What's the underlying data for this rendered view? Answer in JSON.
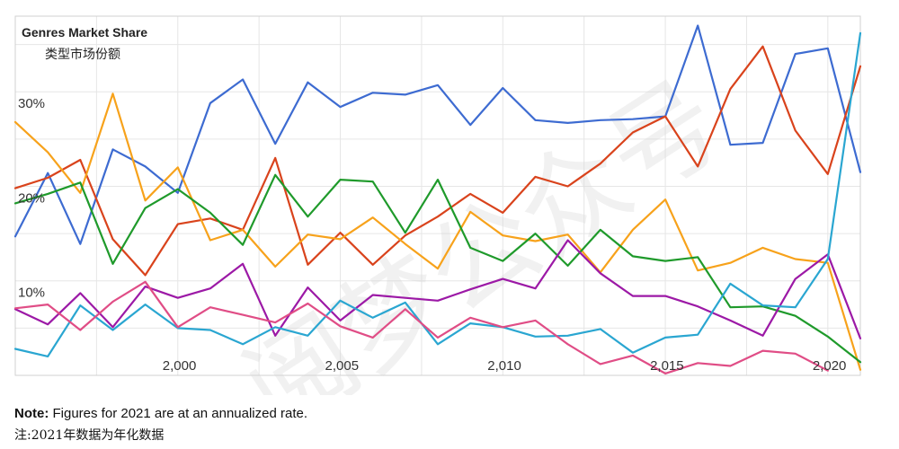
{
  "title": "Genres Market Share",
  "subtitle": "类型市场份额",
  "note_label": "Note:",
  "note_text": " Figures for 2021 are at an annualized rate.",
  "note_cn": "注:2021年数据为年化数据",
  "watermark": "阅梦公众号",
  "colors": {
    "blue": "#3d6bd1",
    "red": "#d9431c",
    "orange": "#f7a21b",
    "green": "#1f9a2b",
    "purple": "#9c19a6",
    "cyan": "#2aa6d1",
    "pink": "#e04d86",
    "grid": "#e6e6e6"
  },
  "chart_data": {
    "type": "line",
    "title": "Genres Market Share",
    "subtitle": "类型市场份额",
    "x": [
      1995,
      1996,
      1997,
      1998,
      1999,
      2000,
      2001,
      2002,
      2003,
      2004,
      2005,
      2006,
      2007,
      2008,
      2009,
      2010,
      2011,
      2012,
      2013,
      2014,
      2015,
      2016,
      2017,
      2018,
      2019,
      2020,
      2021
    ],
    "xlim": [
      1995,
      2021
    ],
    "ylim": [
      0,
      38
    ],
    "y_ticks": [
      {
        "value": 30,
        "label": "30%"
      },
      {
        "value": 20,
        "label": "20%"
      },
      {
        "value": 10,
        "label": "10%"
      }
    ],
    "x_ticks": [
      {
        "value": 2000,
        "label": "2,000"
      },
      {
        "value": 2005,
        "label": "2,005"
      },
      {
        "value": 2010,
        "label": "2,010"
      },
      {
        "value": 2015,
        "label": "2,015"
      },
      {
        "value": 2020,
        "label": "2,020"
      }
    ],
    "grid": true,
    "series": [
      {
        "color_key": "blue",
        "values": [
          14.7,
          21.4,
          13.9,
          23.9,
          22.1,
          19.3,
          28.8,
          31.3,
          24.5,
          31.0,
          28.4,
          29.9,
          29.7,
          30.7,
          26.5,
          30.4,
          27.0,
          26.7,
          27.0,
          27.1,
          27.4,
          37.0,
          24.4,
          24.6,
          34.0,
          34.6,
          21.5
        ]
      },
      {
        "color_key": "red",
        "values": [
          19.8,
          20.9,
          22.8,
          14.4,
          10.6,
          16.0,
          16.6,
          15.4,
          23.0,
          11.7,
          15.1,
          11.7,
          14.8,
          16.8,
          19.2,
          17.2,
          21.0,
          20.0,
          22.4,
          25.7,
          27.4,
          22.1,
          30.3,
          34.8,
          25.9,
          21.3,
          32.7
        ]
      },
      {
        "color_key": "orange",
        "values": [
          26.8,
          23.6,
          19.3,
          29.8,
          18.5,
          22.0,
          14.3,
          15.4,
          11.5,
          14.9,
          14.4,
          16.7,
          13.9,
          11.3,
          17.3,
          14.8,
          14.2,
          14.9,
          10.9,
          15.4,
          18.6,
          11.1,
          11.9,
          13.5,
          12.3,
          11.9,
          0.6
        ]
      },
      {
        "color_key": "green",
        "values": [
          18.2,
          19.2,
          20.4,
          11.8,
          17.7,
          19.7,
          17.2,
          13.8,
          21.2,
          16.8,
          20.7,
          20.5,
          15.1,
          20.7,
          13.5,
          12.1,
          15.0,
          11.6,
          15.4,
          12.6,
          12.1,
          12.5,
          7.2,
          7.3,
          6.3,
          4.1,
          1.4
        ]
      },
      {
        "color_key": "purple",
        "values": [
          7.0,
          5.4,
          8.7,
          5.1,
          9.4,
          8.2,
          9.2,
          11.8,
          4.2,
          9.3,
          5.8,
          8.5,
          8.2,
          7.9,
          9.1,
          10.2,
          9.2,
          14.3,
          10.8,
          8.4,
          8.4,
          7.3,
          5.8,
          4.2,
          10.2,
          12.8,
          3.9
        ]
      },
      {
        "color_key": "cyan",
        "values": [
          2.8,
          2.0,
          7.4,
          4.8,
          7.5,
          5.0,
          4.8,
          3.3,
          5.1,
          4.2,
          7.9,
          6.1,
          7.7,
          3.3,
          5.5,
          5.1,
          4.1,
          4.2,
          4.9,
          2.4,
          4.0,
          4.3,
          9.7,
          7.4,
          7.2,
          12.3,
          36.2
        ]
      },
      {
        "color_key": "pink",
        "values": [
          7.1,
          7.5,
          4.8,
          7.8,
          9.9,
          5.1,
          7.2,
          6.4,
          5.6,
          7.6,
          5.2,
          4.0,
          7.0,
          4.0,
          6.1,
          5.1,
          5.8,
          3.3,
          1.2,
          2.1,
          0.2,
          1.3,
          1.0,
          2.6,
          2.3,
          0.5,
          null
        ]
      }
    ]
  }
}
